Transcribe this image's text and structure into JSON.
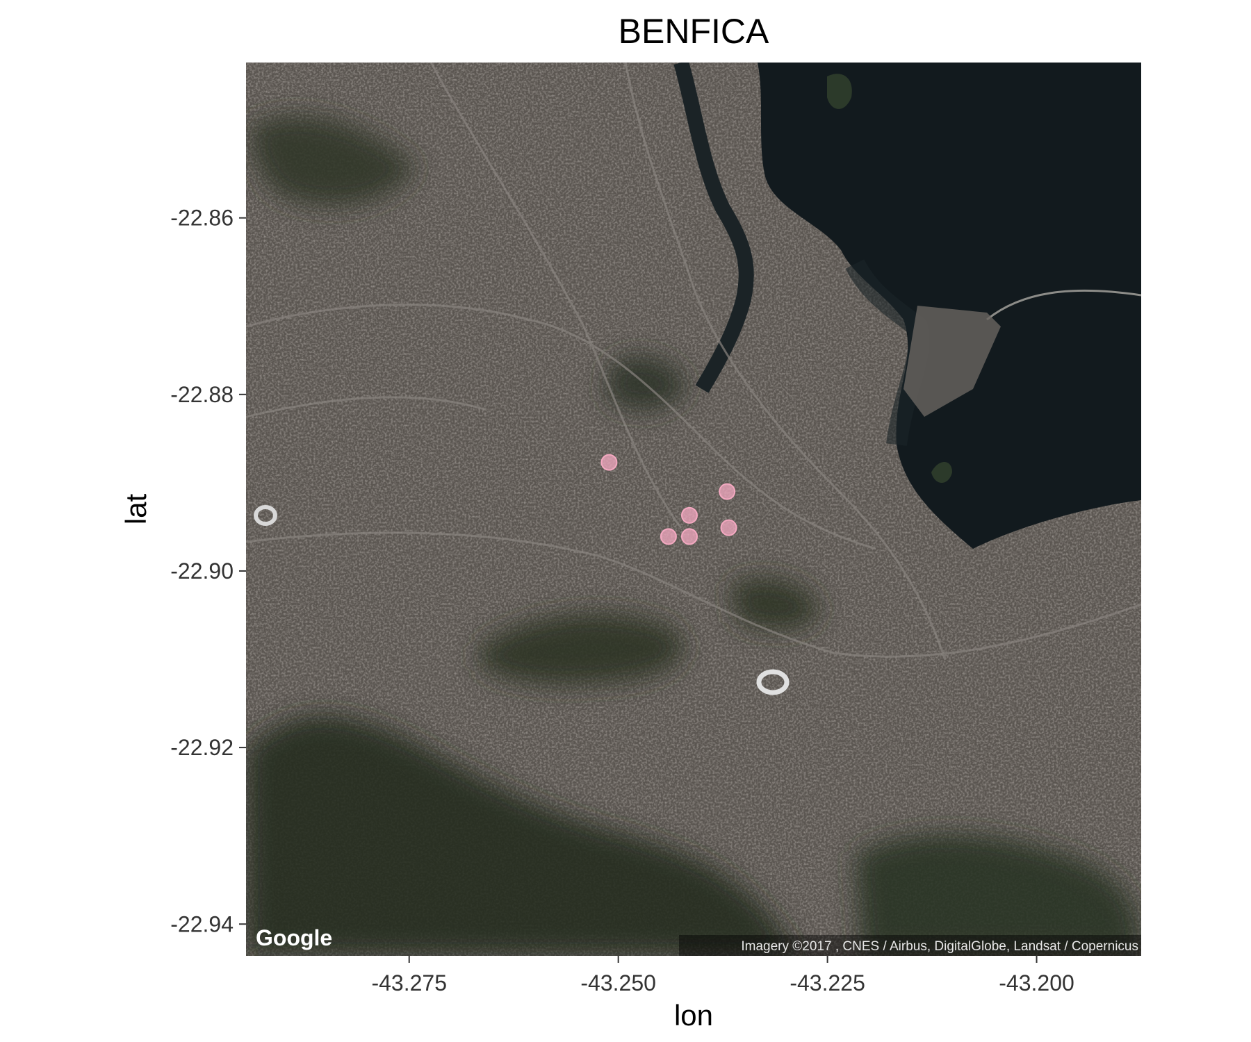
{
  "map": {
    "title": "BENFICA",
    "xlabel": "lon",
    "ylabel": "lat",
    "xlim": [
      -43.2945,
      -43.1875
    ],
    "ylim": [
      -22.9436,
      -22.8424
    ],
    "x_ticks": [
      {
        "value": -43.275,
        "label": "-43.275"
      },
      {
        "value": -43.25,
        "label": "-43.250"
      },
      {
        "value": -43.225,
        "label": "-43.225"
      },
      {
        "value": -43.2,
        "label": "-43.200"
      }
    ],
    "y_ticks": [
      {
        "value": -22.86,
        "label": "-22.86"
      },
      {
        "value": -22.88,
        "label": "-22.88"
      },
      {
        "value": -22.9,
        "label": "-22.90"
      },
      {
        "value": -22.92,
        "label": "-22.92"
      },
      {
        "value": -22.94,
        "label": "-22.94"
      }
    ],
    "basemap": "satellite",
    "logo": "Google",
    "attribution": "Imagery ©2017 , CNES / Airbus, DigitalGlobe, Landsat / Copernicus",
    "point_color": "#f4a9c1",
    "points": [
      {
        "lon": -43.2511,
        "lat": -22.8877
      },
      {
        "lon": -43.237,
        "lat": -22.891
      },
      {
        "lon": -43.2415,
        "lat": -22.8937
      },
      {
        "lon": -43.2368,
        "lat": -22.8951
      },
      {
        "lon": -43.244,
        "lat": -22.8961
      },
      {
        "lon": -43.2415,
        "lat": -22.8961
      }
    ]
  }
}
